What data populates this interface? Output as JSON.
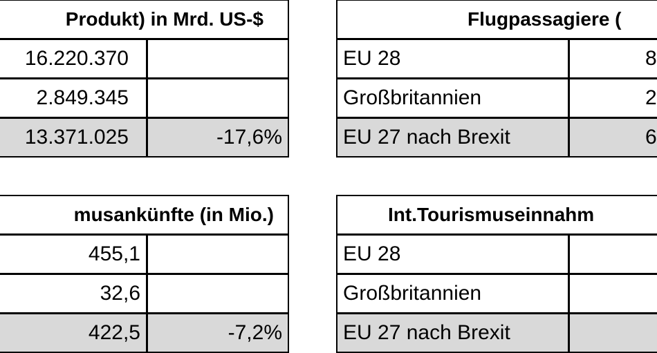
{
  "tables": [
    {
      "header": "Produkt) in Mrd. US-$",
      "rows": [
        [
          "16.220.370"
        ],
        [
          "2.849.345"
        ],
        [
          "13.371.025",
          "-17,6%"
        ]
      ]
    },
    {
      "header": "Flugpassagiere (",
      "rows": [
        [
          "EU 28",
          "8"
        ],
        [
          "Großbritannien",
          "2"
        ],
        [
          "EU 27 nach Brexit",
          "6"
        ]
      ]
    },
    {
      "header": "musankünfte (in Mio.)",
      "rows": [
        [
          "455,1"
        ],
        [
          "32,6"
        ],
        [
          "422,5",
          "-7,2%"
        ]
      ]
    },
    {
      "header": "Int.Tourismuseinnahm",
      "rows": [
        [
          "EU 28"
        ],
        [
          "Großbritannien"
        ],
        [
          "EU 27 nach Brexit"
        ]
      ]
    }
  ]
}
